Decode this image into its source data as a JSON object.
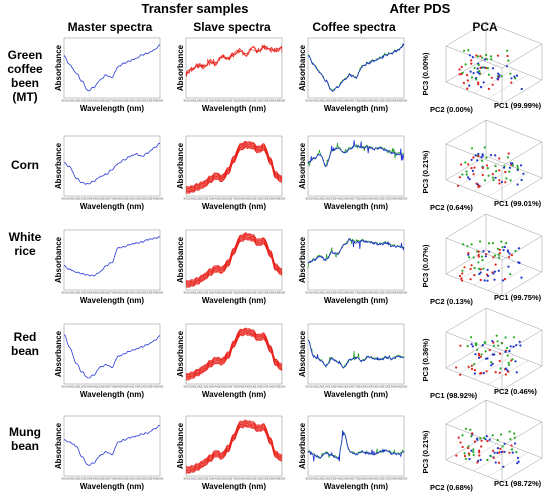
{
  "headers": {
    "transfer": "Transfer samples",
    "after": "After PDS",
    "master": "Master spectra",
    "slave": "Slave spectra",
    "coffee": "Coffee spectra",
    "pca": "PCA"
  },
  "axis": {
    "ylabel": "Absorbance",
    "xlabel": "Wavelength (nm)",
    "ticks": [
      "900",
      "1000",
      "1100",
      "1200",
      "1300",
      "1400",
      "1500",
      "1600",
      "1700",
      "1800",
      "1900",
      "2000",
      "2100",
      "2200",
      "2300",
      "2400",
      "2500"
    ]
  },
  "colors": {
    "master": "#2a3bd6",
    "slave": "#e8231c",
    "coffee_blue": "#1c2fd0",
    "coffee_green": "#1a9a1a",
    "pca_red": "#e0201a",
    "pca_green": "#22aa22",
    "pca_blue": "#1f35c9"
  },
  "rows": [
    {
      "label": [
        "Green",
        "coffee",
        "been",
        "(MT)"
      ],
      "pca": {
        "pc1": "PC1 (99.99%)",
        "pc2": "PC2 (0.00%)",
        "pc3": "PC3 (0.00%)"
      }
    },
    {
      "label": [
        "Corn"
      ],
      "pca": {
        "pc1": "PC1 (99.01%)",
        "pc2": "PC2 (0.64%)",
        "pc3": "PC3 (0.21%)"
      }
    },
    {
      "label": [
        "White",
        "rice"
      ],
      "pca": {
        "pc1": "PC1 (99.75%)",
        "pc2": "PC2 (0.13%)",
        "pc3": "PC3 (0.07%)"
      }
    },
    {
      "label": [
        "Red",
        "bean"
      ],
      "pca": {
        "pc1": "PC1 (98.92%)",
        "pc2": "PC2 (0.46%)",
        "pc3": "PC3 (0.36%)"
      }
    },
    {
      "label": [
        "Mung",
        "bean"
      ],
      "pca": {
        "pc1": "PC1 (98.72%)",
        "pc2": "PC2 (0.68%)",
        "pc3": "PC3 (0.21%)"
      }
    }
  ],
  "chart_data": [
    {
      "type": "line",
      "panel": "green-coffee-master",
      "x": [
        900,
        1000,
        1100,
        1200,
        1300,
        1400,
        1500,
        1600,
        1700,
        1800,
        1900,
        2000,
        2100,
        2200,
        2300,
        2400,
        2500
      ],
      "series": [
        {
          "values": [
            0.7,
            0.55,
            0.42,
            0.28,
            0.12,
            0.18,
            0.3,
            0.38,
            0.34,
            0.52,
            0.58,
            0.62,
            0.66,
            0.72,
            0.75,
            0.8,
            0.88
          ]
        }
      ]
    },
    {
      "type": "line",
      "panel": "green-coffee-slave",
      "x": [
        900,
        1000,
        1100,
        1200,
        1300,
        1400,
        1500,
        1600,
        1700,
        1800,
        1900,
        2000,
        2100,
        2200,
        2300,
        2400,
        2500
      ],
      "series": [
        {
          "values": [
            0.42,
            0.48,
            0.55,
            0.52,
            0.62,
            0.58,
            0.7,
            0.66,
            0.74,
            0.8,
            0.72,
            0.84,
            0.78,
            0.86,
            0.82,
            0.8,
            0.84
          ]
        }
      ]
    },
    {
      "type": "line",
      "panel": "green-coffee-coffee",
      "x": [
        900,
        1000,
        1100,
        1200,
        1300,
        1400,
        1500,
        1600,
        1700,
        1800,
        1900,
        2000,
        2100,
        2200,
        2300,
        2400,
        2500
      ],
      "series": [
        {
          "values": [
            0.7,
            0.55,
            0.42,
            0.28,
            0.12,
            0.18,
            0.3,
            0.38,
            0.34,
            0.52,
            0.58,
            0.62,
            0.66,
            0.72,
            0.75,
            0.8,
            0.88
          ]
        }
      ]
    },
    {
      "type": "line",
      "panel": "corn-master",
      "x": [
        900,
        1000,
        1100,
        1200,
        1300,
        1400,
        1500,
        1600,
        1700,
        1800,
        1900,
        2000,
        2100,
        2200,
        2300,
        2400,
        2500
      ],
      "series": [
        {
          "values": [
            0.55,
            0.48,
            0.3,
            0.22,
            0.2,
            0.25,
            0.32,
            0.36,
            0.44,
            0.54,
            0.6,
            0.66,
            0.7,
            0.66,
            0.72,
            0.8,
            0.88
          ]
        }
      ]
    },
    {
      "type": "line",
      "panel": "corn-slave",
      "x": [
        900,
        1000,
        1100,
        1200,
        1300,
        1400,
        1500,
        1600,
        1700,
        1800,
        1900,
        2000,
        2100,
        2200,
        2300,
        2400,
        2500
      ],
      "series": [
        {
          "values": [
            0.1,
            0.12,
            0.16,
            0.2,
            0.28,
            0.34,
            0.3,
            0.42,
            0.62,
            0.82,
            0.86,
            0.85,
            0.78,
            0.82,
            0.6,
            0.35,
            0.28
          ]
        }
      ]
    },
    {
      "type": "line",
      "panel": "corn-coffee",
      "x": [
        900,
        1000,
        1100,
        1200,
        1300,
        1400,
        1500,
        1600,
        1700,
        1800,
        1900,
        2000,
        2100,
        2200,
        2300,
        2400,
        2500
      ],
      "series": [
        {
          "values": [
            0.55,
            0.62,
            0.7,
            0.5,
            0.75,
            0.8,
            0.72,
            0.78,
            0.84,
            0.8,
            0.82,
            0.78,
            0.8,
            0.76,
            0.72,
            0.7,
            0.68
          ]
        }
      ]
    },
    {
      "type": "line",
      "panel": "white-rice-master",
      "x": [
        900,
        1000,
        1100,
        1200,
        1300,
        1400,
        1500,
        1600,
        1700,
        1800,
        1900,
        2000,
        2100,
        2200,
        2300,
        2400,
        2500
      ],
      "series": [
        {
          "values": [
            0.4,
            0.34,
            0.3,
            0.27,
            0.25,
            0.24,
            0.3,
            0.4,
            0.46,
            0.7,
            0.72,
            0.76,
            0.78,
            0.8,
            0.84,
            0.86,
            0.88
          ]
        }
      ]
    },
    {
      "type": "line",
      "panel": "white-rice-slave",
      "x": [
        900,
        1000,
        1100,
        1200,
        1300,
        1400,
        1500,
        1600,
        1700,
        1800,
        1900,
        2000,
        2100,
        2200,
        2300,
        2400,
        2500
      ],
      "series": [
        {
          "values": [
            0.1,
            0.12,
            0.16,
            0.22,
            0.3,
            0.36,
            0.34,
            0.45,
            0.66,
            0.86,
            0.9,
            0.88,
            0.8,
            0.82,
            0.62,
            0.38,
            0.3
          ]
        }
      ]
    },
    {
      "type": "line",
      "panel": "white-rice-coffee",
      "x": [
        900,
        1000,
        1100,
        1200,
        1300,
        1400,
        1500,
        1600,
        1700,
        1800,
        1900,
        2000,
        2100,
        2200,
        2300,
        2400,
        2500
      ],
      "series": [
        {
          "values": [
            0.45,
            0.5,
            0.56,
            0.5,
            0.62,
            0.6,
            0.75,
            0.84,
            0.8,
            0.82,
            0.8,
            0.78,
            0.76,
            0.78,
            0.74,
            0.72,
            0.7
          ]
        }
      ]
    },
    {
      "type": "line",
      "panel": "red-bean-master",
      "x": [
        900,
        1000,
        1100,
        1200,
        1300,
        1400,
        1500,
        1600,
        1700,
        1800,
        1900,
        2000,
        2100,
        2200,
        2300,
        2400,
        2500
      ],
      "series": [
        {
          "values": [
            0.82,
            0.6,
            0.35,
            0.2,
            0.1,
            0.15,
            0.28,
            0.32,
            0.28,
            0.46,
            0.5,
            0.55,
            0.58,
            0.62,
            0.66,
            0.72,
            0.8
          ]
        }
      ]
    },
    {
      "type": "line",
      "panel": "red-bean-slave",
      "x": [
        900,
        1000,
        1100,
        1200,
        1300,
        1400,
        1500,
        1600,
        1700,
        1800,
        1900,
        2000,
        2100,
        2200,
        2300,
        2400,
        2500
      ],
      "series": [
        {
          "values": [
            0.12,
            0.15,
            0.2,
            0.26,
            0.34,
            0.4,
            0.38,
            0.48,
            0.68,
            0.86,
            0.88,
            0.86,
            0.78,
            0.8,
            0.6,
            0.36,
            0.28
          ]
        }
      ]
    },
    {
      "type": "line",
      "panel": "red-bean-coffee",
      "x": [
        900,
        1000,
        1100,
        1200,
        1300,
        1400,
        1500,
        1600,
        1700,
        1800,
        1900,
        2000,
        2100,
        2200,
        2300,
        2400,
        2500
      ],
      "series": [
        {
          "values": [
            0.72,
            0.45,
            0.4,
            0.3,
            0.42,
            0.36,
            0.28,
            0.4,
            0.44,
            0.38,
            0.45,
            0.42,
            0.4,
            0.44,
            0.42,
            0.46,
            0.44
          ]
        }
      ]
    },
    {
      "type": "line",
      "panel": "mung-bean-master",
      "x": [
        900,
        1000,
        1100,
        1200,
        1300,
        1400,
        1500,
        1600,
        1700,
        1800,
        1900,
        2000,
        2100,
        2200,
        2300,
        2400,
        2500
      ],
      "series": [
        {
          "values": [
            0.6,
            0.56,
            0.5,
            0.32,
            0.18,
            0.22,
            0.34,
            0.4,
            0.36,
            0.56,
            0.6,
            0.64,
            0.66,
            0.7,
            0.72,
            0.78,
            0.84
          ]
        }
      ]
    },
    {
      "type": "line",
      "panel": "mung-bean-slave",
      "x": [
        900,
        1000,
        1100,
        1200,
        1300,
        1400,
        1500,
        1600,
        1700,
        1800,
        1900,
        2000,
        2100,
        2200,
        2300,
        2400,
        2500
      ],
      "series": [
        {
          "values": [
            0.1,
            0.12,
            0.16,
            0.22,
            0.3,
            0.38,
            0.34,
            0.46,
            0.66,
            0.86,
            0.88,
            0.86,
            0.8,
            0.82,
            0.6,
            0.36,
            0.3
          ]
        }
      ]
    },
    {
      "type": "line",
      "panel": "mung-bean-coffee",
      "x": [
        900,
        1000,
        1100,
        1200,
        1300,
        1400,
        1500,
        1600,
        1700,
        1800,
        1900,
        2000,
        2100,
        2200,
        2300,
        2400,
        2500
      ],
      "series": [
        {
          "values": [
            0.4,
            0.35,
            0.3,
            0.38,
            0.34,
            0.3,
            0.7,
            0.4,
            0.36,
            0.4,
            0.38,
            0.36,
            0.4,
            0.42,
            0.38,
            0.36,
            0.4
          ]
        }
      ]
    }
  ]
}
